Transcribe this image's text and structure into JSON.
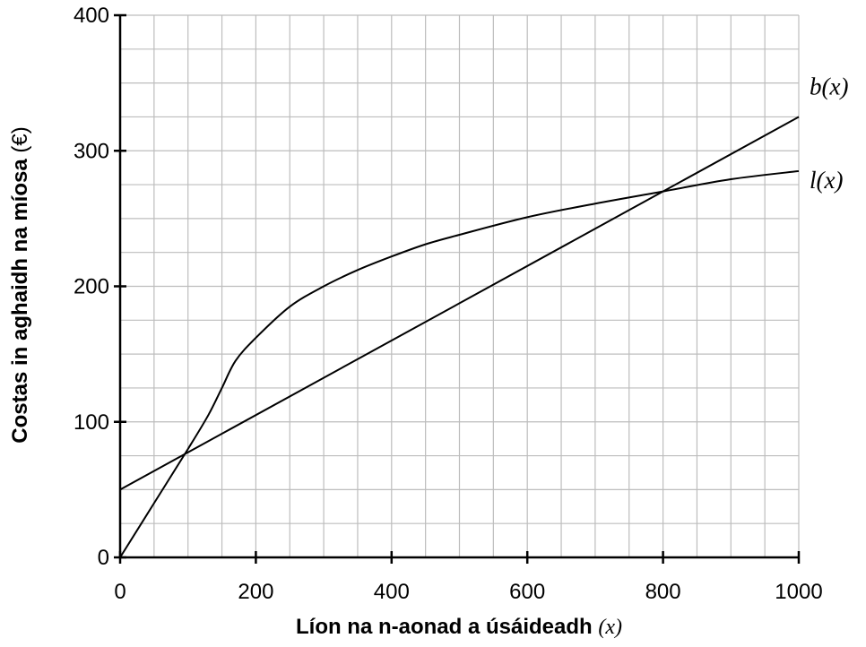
{
  "chart_data": {
    "type": "line",
    "title": "",
    "xlabel": "Líon na n-aonad a úsáideadh",
    "xlabel_var": "(x)",
    "ylabel": "Costas in aghaidh na míosa",
    "ylabel_unit": "(€)",
    "xlim": [
      0,
      1000
    ],
    "ylim": [
      0,
      400
    ],
    "x_ticks": [
      0,
      200,
      400,
      600,
      800,
      1000
    ],
    "y_ticks": [
      0,
      100,
      200,
      300,
      400
    ],
    "x_tick_labels": [
      "0",
      "200",
      "400",
      "600",
      "800",
      "1000"
    ],
    "y_tick_labels": [
      "0",
      "100",
      "200",
      "300",
      "400"
    ],
    "grid": true,
    "grid_minor_x": 50,
    "grid_minor_y": 25,
    "legend": "none",
    "series": [
      {
        "name": "b(x)",
        "label_position": "end",
        "x": [
          0,
          1000
        ],
        "y": [
          50,
          325
        ]
      },
      {
        "name": "l(x)",
        "label_position": "end",
        "x": [
          0,
          50,
          100,
          130,
          150,
          170,
          200,
          250,
          300,
          350,
          400,
          450,
          500,
          600,
          700,
          800,
          900,
          1000
        ],
        "y": [
          0,
          40,
          80,
          105,
          125,
          145,
          162,
          185,
          200,
          212,
          222,
          231,
          238,
          251,
          261,
          270,
          279,
          285
        ]
      }
    ]
  }
}
